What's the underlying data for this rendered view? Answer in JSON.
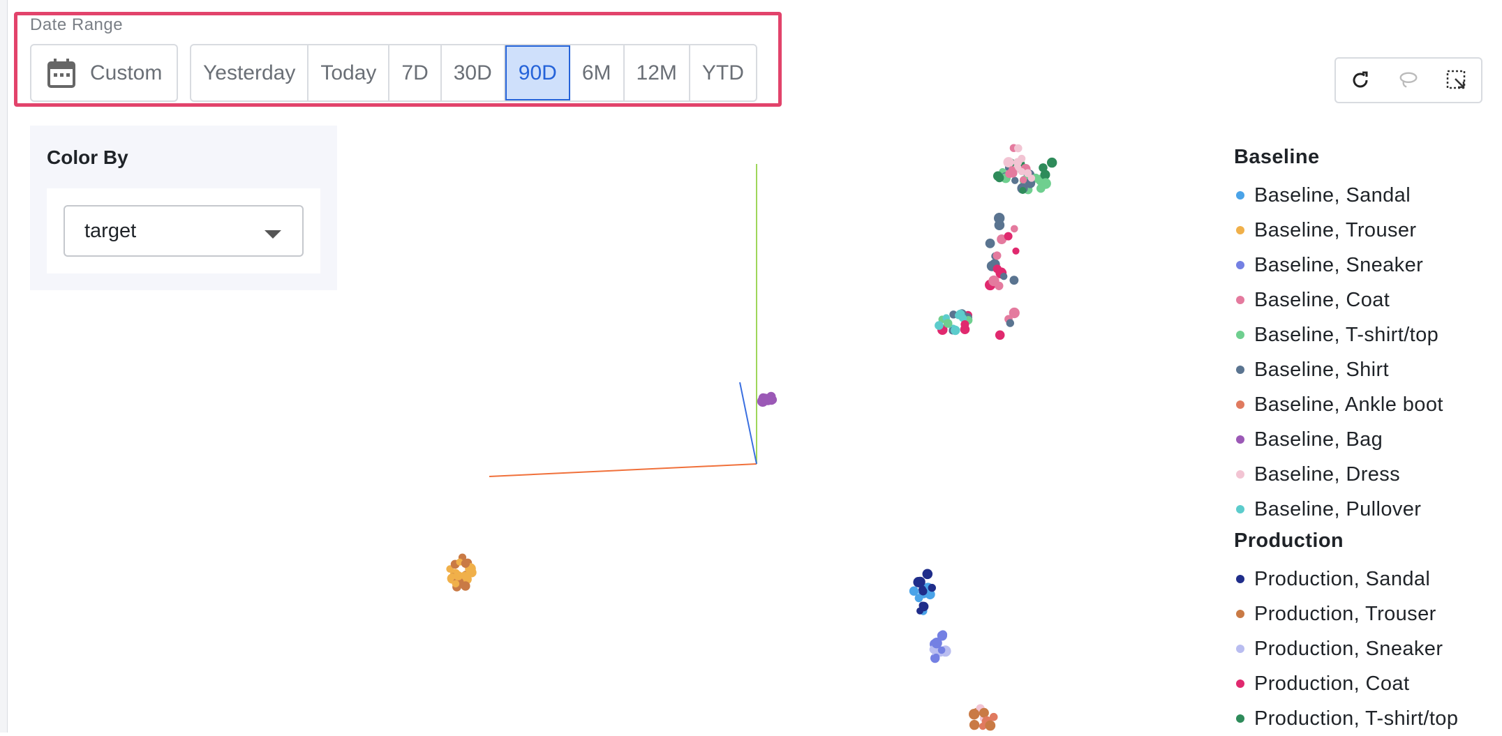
{
  "date_range": {
    "label": "Date Range",
    "custom_label": "Custom",
    "options": [
      "Yesterday",
      "Today",
      "7D",
      "30D",
      "90D",
      "6M",
      "12M",
      "YTD"
    ],
    "active": "90D"
  },
  "toolbar": {
    "icons": [
      "refresh-icon",
      "lasso-icon",
      "box-select-icon"
    ]
  },
  "color_by": {
    "title": "Color By",
    "selected": "target"
  },
  "legend": {
    "groups": [
      {
        "title": "Baseline",
        "items": [
          {
            "label": "Baseline, Sandal",
            "color": "#4aa3e8"
          },
          {
            "label": "Baseline, Trouser",
            "color": "#f0b04a"
          },
          {
            "label": "Baseline, Sneaker",
            "color": "#7480e3"
          },
          {
            "label": "Baseline, Coat",
            "color": "#e47a9e"
          },
          {
            "label": "Baseline, T-shirt/top",
            "color": "#6fcf8f"
          },
          {
            "label": "Baseline, Shirt",
            "color": "#5a7490"
          },
          {
            "label": "Baseline, Ankle boot",
            "color": "#e07a5f"
          },
          {
            "label": "Baseline, Bag",
            "color": "#9b59b6"
          },
          {
            "label": "Baseline, Dress",
            "color": "#f2c4d3"
          },
          {
            "label": "Baseline, Pullover",
            "color": "#5ccccc"
          }
        ]
      },
      {
        "title": "Production",
        "items": [
          {
            "label": "Production, Sandal",
            "color": "#1f2d8a"
          },
          {
            "label": "Production, Trouser",
            "color": "#c97a45"
          },
          {
            "label": "Production, Sneaker",
            "color": "#b9bdf0"
          },
          {
            "label": "Production, Coat",
            "color": "#e0296e"
          },
          {
            "label": "Production, T-shirt/top",
            "color": "#2e8b5a"
          }
        ]
      }
    ]
  }
}
